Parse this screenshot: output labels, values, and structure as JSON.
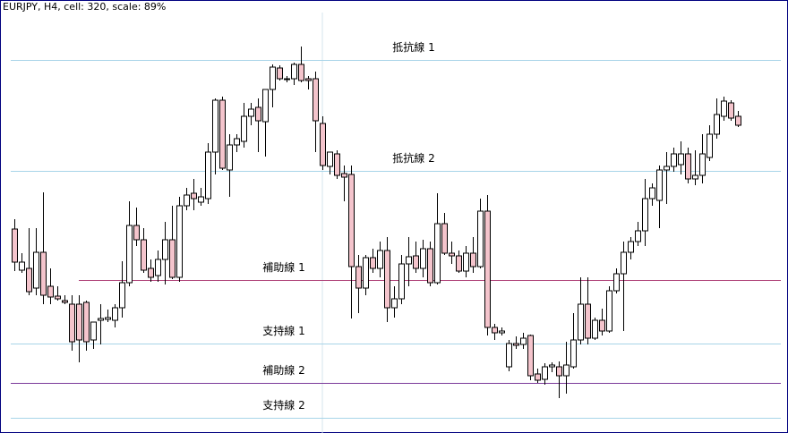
{
  "chart_data": {
    "type": "candlestick",
    "title": "EURJPY, H4, cell: 320, scale: 89%",
    "ylim": [
      0,
      484
    ],
    "up_color": "#ffffff",
    "down_color": "#f4c4cc",
    "edge_color": "#000000",
    "open": [
      228,
      182,
      184,
      162,
      202,
      164,
      153,
      148,
      144,
      144,
      146,
      104,
      126,
      127,
      126,
      140,
      168,
      232,
      216,
      184,
      176,
      194,
      216,
      174,
      254,
      268,
      258,
      262,
      314,
      372,
      294,
      322,
      326,
      354,
      364,
      348,
      384,
      408,
      396,
      396,
      412,
      396,
      396,
      346,
      298,
      312,
      290,
      289,
      186,
      162,
      196,
      184,
      204,
      140,
      150,
      189,
      198,
      184,
      206,
      168,
      234,
      201,
      198,
      181,
      201,
      186,
      248,
      118,
      112,
      74,
      100,
      99,
      109,
      66,
      60,
      74,
      74,
      64,
      74,
      104,
      144,
      106,
      126,
      114,
      159,
      178,
      202,
      214,
      226,
      262,
      260,
      294,
      298,
      300,
      312,
      284,
      288,
      308,
      334,
      354,
      369,
      354
    ],
    "high": [
      239,
      201,
      229,
      229,
      269,
      184,
      164,
      154,
      154,
      154,
      148,
      124,
      144,
      138,
      144,
      192,
      259,
      252,
      229,
      194,
      204,
      236,
      254,
      264,
      274,
      284,
      274,
      324,
      374,
      376,
      334,
      334,
      369,
      369,
      374,
      384,
      412,
      411,
      399,
      414,
      432,
      399,
      404,
      354,
      314,
      316,
      299,
      299,
      199,
      199,
      206,
      214,
      219,
      164,
      199,
      219,
      214,
      216,
      214,
      268,
      246,
      214,
      204,
      209,
      219,
      262,
      266,
      122,
      118,
      104,
      108,
      112,
      110,
      72,
      78,
      79,
      80,
      102,
      134,
      174,
      174,
      129,
      139,
      164,
      184,
      214,
      219,
      236,
      284,
      279,
      299,
      314,
      319,
      326,
      319,
      316,
      334,
      344,
      374,
      376,
      372,
      360
    ],
    "low": [
      181,
      179,
      154,
      154,
      144,
      144,
      148,
      144,
      92,
      79,
      92,
      94,
      99,
      124,
      118,
      129,
      164,
      209,
      179,
      169,
      169,
      166,
      172,
      169,
      249,
      249,
      254,
      256,
      289,
      294,
      264,
      314,
      319,
      344,
      314,
      309,
      364,
      394,
      392,
      389,
      392,
      384,
      314,
      294,
      289,
      284,
      259,
      128,
      134,
      154,
      179,
      174,
      124,
      129,
      144,
      164,
      179,
      174,
      164,
      166,
      199,
      189,
      179,
      174,
      179,
      184,
      109,
      104,
      109,
      69,
      94,
      94,
      59,
      56,
      54,
      68,
      39,
      44,
      72,
      99,
      99,
      104,
      109,
      112,
      156,
      114,
      194,
      209,
      209,
      254,
      229,
      256,
      292,
      289,
      279,
      277,
      279,
      304,
      329,
      349,
      349,
      342
    ],
    "close": [
      191,
      191,
      158,
      202,
      154,
      152,
      150,
      146,
      102,
      104,
      102,
      124,
      128,
      129,
      140,
      168,
      232,
      216,
      182,
      174,
      194,
      216,
      174,
      254,
      266,
      262,
      264,
      314,
      372,
      296,
      322,
      329,
      354,
      362,
      349,
      384,
      409,
      396,
      396,
      412,
      394,
      394,
      349,
      299,
      314,
      288,
      286,
      186,
      162,
      196,
      184,
      204,
      140,
      150,
      189,
      197,
      184,
      206,
      168,
      234,
      201,
      198,
      181,
      201,
      186,
      248,
      118,
      112,
      114,
      100,
      98,
      106,
      64,
      59,
      74,
      76,
      64,
      76,
      104,
      144,
      106,
      126,
      114,
      159,
      178,
      202,
      214,
      226,
      262,
      274,
      294,
      298,
      312,
      312,
      284,
      288,
      312,
      334,
      356,
      371,
      352,
      344
    ],
    "levels": [
      {
        "label": "抵抗線 1",
        "value": 417,
        "color": "#a8d4e8"
      },
      {
        "label": "抵抗線 2",
        "value": 293,
        "color": "#a8d4e8"
      },
      {
        "label": "補助線 1",
        "value": 171,
        "color": "#b0457a"
      },
      {
        "label": "支持線 1",
        "value": 100,
        "color": "#a8d4e8"
      },
      {
        "label": "補助線 2",
        "value": 56,
        "color": "#7a3a9a"
      },
      {
        "label": "支持線 2",
        "value": 17,
        "color": "#a8d4e8"
      }
    ]
  }
}
